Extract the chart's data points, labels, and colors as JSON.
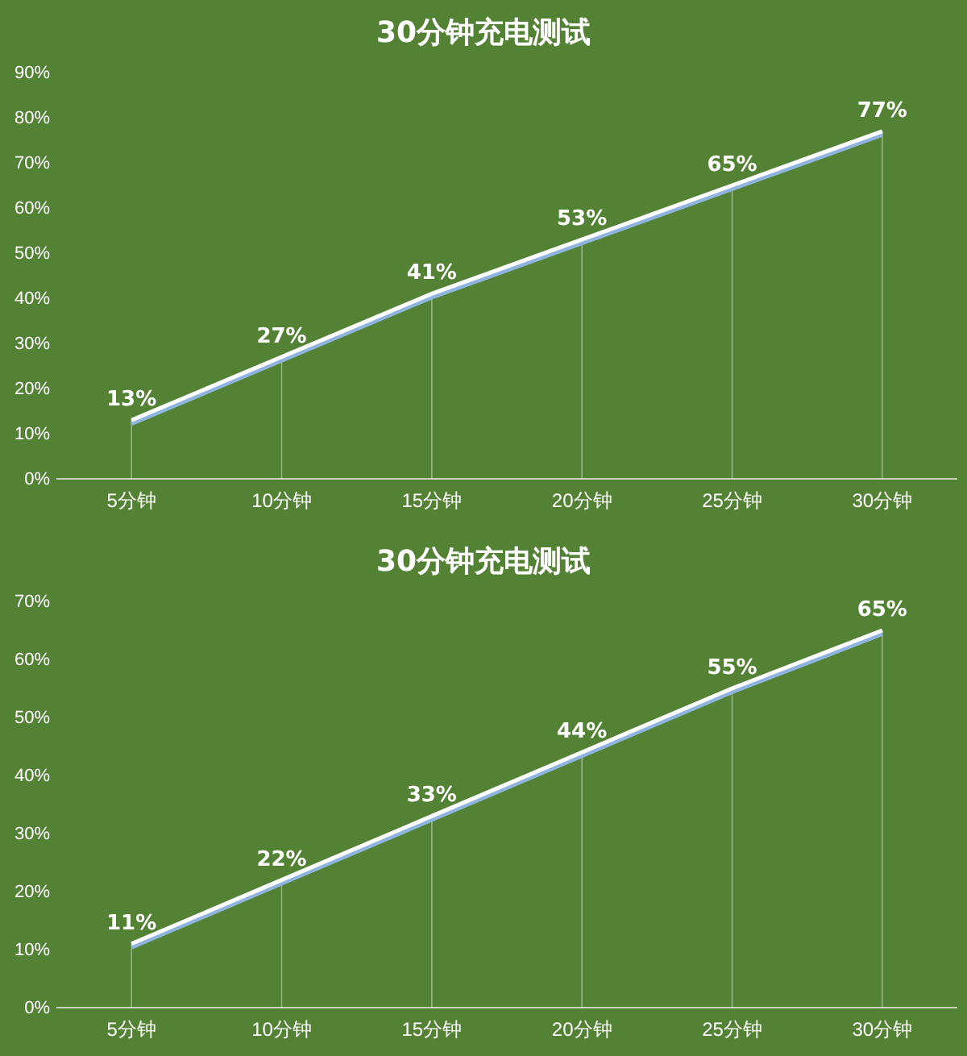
{
  "chart_data": [
    {
      "type": "line",
      "title": "30分钟充电测试",
      "categories": [
        "5分钟",
        "10分钟",
        "15分钟",
        "20分钟",
        "25分钟",
        "30分钟"
      ],
      "series": [
        {
          "color": "#ffffff",
          "values": [
            13,
            27,
            41,
            53,
            65,
            77
          ]
        }
      ],
      "ylim": [
        0,
        90
      ],
      "yticks": [
        {
          "value": 0,
          "label": "0%"
        },
        {
          "value": 10,
          "label": "10%"
        },
        {
          "value": 20,
          "label": "20%"
        },
        {
          "value": 30,
          "label": "30%"
        },
        {
          "value": 40,
          "label": "40%"
        },
        {
          "value": 50,
          "label": "50%"
        },
        {
          "value": 60,
          "label": "60%"
        },
        {
          "value": 70,
          "label": "70%"
        },
        {
          "value": 80,
          "label": "80%"
        },
        {
          "value": 90,
          "label": "90%"
        }
      ],
      "value_labels": [
        "13%",
        "27%",
        "41%",
        "53%",
        "65%",
        "77%"
      ],
      "grid": "x",
      "marker": "none",
      "line_style": "solid"
    },
    {
      "type": "line",
      "title": "30分钟充电测试",
      "categories": [
        "5分钟",
        "10分钟",
        "15分钟",
        "20分钟",
        "25分钟",
        "30分钟"
      ],
      "series": [
        {
          "color": "#ffffff",
          "values": [
            11,
            22,
            33,
            44,
            55,
            65
          ]
        }
      ],
      "ylim": [
        0,
        70
      ],
      "yticks": [
        {
          "value": 0,
          "label": "0%"
        },
        {
          "value": 10,
          "label": "10%"
        },
        {
          "value": 20,
          "label": "20%"
        },
        {
          "value": 30,
          "label": "30%"
        },
        {
          "value": 40,
          "label": "40%"
        },
        {
          "value": 50,
          "label": "50%"
        },
        {
          "value": 60,
          "label": "60%"
        },
        {
          "value": 70,
          "label": "70%"
        }
      ],
      "value_labels": [
        "11%",
        "22%",
        "33%",
        "44%",
        "55%",
        "65%"
      ],
      "grid": "x",
      "marker": "none",
      "line_style": "solid"
    }
  ]
}
